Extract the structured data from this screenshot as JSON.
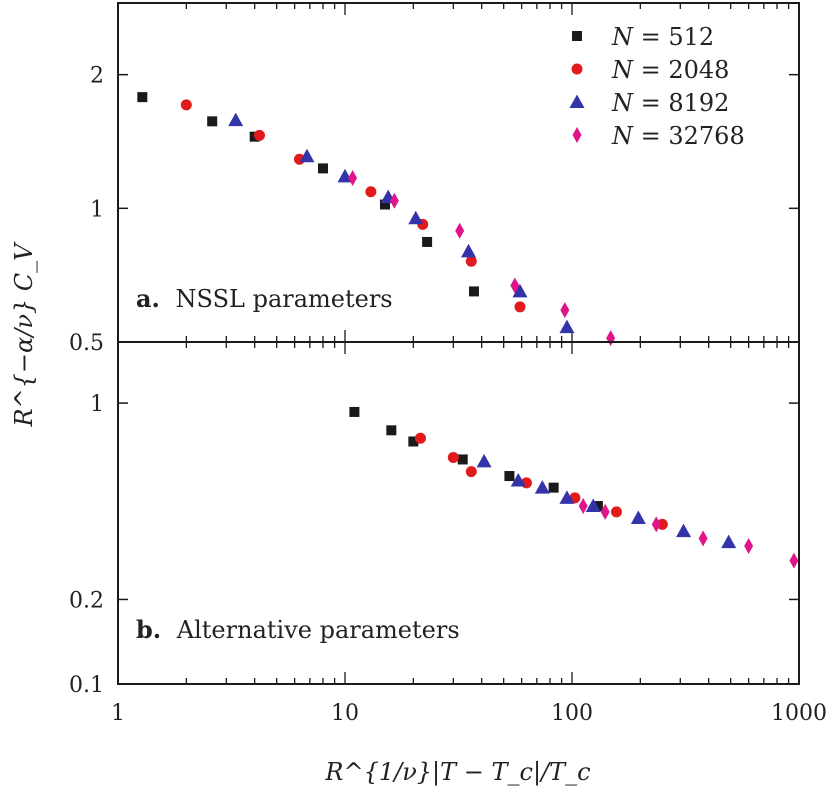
{
  "chart_data": [
    {
      "type": "scatter",
      "panel_label_bold": "a.",
      "panel_label_text": "NSSL parameters",
      "xscale": "log",
      "yscale": "log",
      "xlim": [
        1,
        1000
      ],
      "ylim": [
        0.5,
        2.9
      ],
      "yticks": [
        0.5,
        1,
        2
      ],
      "ytick_labels": [
        "0.5",
        "1",
        "2"
      ],
      "legend_position": "top-right",
      "series": [
        {
          "name": "N = 512",
          "marker": "square",
          "color": "#1a1a1a",
          "points": [
            [
              1.28,
              1.78
            ],
            [
              2.6,
              1.57
            ],
            [
              4.0,
              1.45
            ],
            [
              8.0,
              1.23
            ],
            [
              15.0,
              1.02
            ],
            [
              23.0,
              0.84
            ],
            [
              37.0,
              0.65
            ]
          ]
        },
        {
          "name": "N = 2048",
          "marker": "circle",
          "color": "#e31a1c",
          "points": [
            [
              2.0,
              1.71
            ],
            [
              4.2,
              1.46
            ],
            [
              6.3,
              1.29
            ],
            [
              13.0,
              1.09
            ],
            [
              22.0,
              0.92
            ],
            [
              36.0,
              0.76
            ],
            [
              59.0,
              0.6
            ]
          ]
        },
        {
          "name": "N = 8192",
          "marker": "triangle",
          "color": "#3333aa",
          "points": [
            [
              3.3,
              1.58
            ],
            [
              6.8,
              1.31
            ],
            [
              10.0,
              1.18
            ],
            [
              15.5,
              1.06
            ],
            [
              20.5,
              0.95
            ],
            [
              35.0,
              0.8
            ],
            [
              59.0,
              0.65
            ],
            [
              95.0,
              0.54
            ]
          ]
        },
        {
          "name": "N = 32768",
          "marker": "diamond",
          "color": "#e0158a",
          "points": [
            [
              10.8,
              1.17
            ],
            [
              16.5,
              1.04
            ],
            [
              32.0,
              0.89
            ],
            [
              56.0,
              0.67
            ],
            [
              93.0,
              0.59
            ],
            [
              148.0,
              0.51
            ]
          ]
        }
      ]
    },
    {
      "type": "scatter",
      "panel_label_bold": "b.",
      "panel_label_text": "Alternative parameters",
      "xscale": "log",
      "yscale": "log",
      "xlim": [
        1,
        1000
      ],
      "ylim": [
        0.1,
        1.65
      ],
      "yticks": [
        0.1,
        0.2,
        1
      ],
      "ytick_labels": [
        "0.1",
        "0.2",
        "1"
      ],
      "xticks": [
        1,
        10,
        100,
        1000
      ],
      "xtick_labels": [
        "1",
        "10",
        "100",
        "1000"
      ],
      "series": [
        {
          "name": "N = 512",
          "marker": "square",
          "color": "#1a1a1a",
          "points": [
            [
              11.0,
              0.93
            ],
            [
              16.0,
              0.8
            ],
            [
              20.0,
              0.73
            ],
            [
              33.0,
              0.63
            ],
            [
              53.0,
              0.55
            ],
            [
              83.0,
              0.5
            ],
            [
              130.0,
              0.43
            ]
          ]
        },
        {
          "name": "N = 2048",
          "marker": "circle",
          "color": "#e31a1c",
          "points": [
            [
              21.5,
              0.75
            ],
            [
              30.0,
              0.64
            ],
            [
              36.0,
              0.57
            ],
            [
              63.0,
              0.52
            ],
            [
              103.0,
              0.46
            ],
            [
              157.0,
              0.41
            ],
            [
              250.0,
              0.37
            ]
          ]
        },
        {
          "name": "N = 8192",
          "marker": "triangle",
          "color": "#3333aa",
          "points": [
            [
              41.0,
              0.62
            ],
            [
              58.0,
              0.53
            ],
            [
              74.0,
              0.5
            ],
            [
              95.0,
              0.46
            ],
            [
              124.0,
              0.43
            ],
            [
              196.0,
              0.39
            ],
            [
              310.0,
              0.35
            ],
            [
              490.0,
              0.32
            ]
          ]
        },
        {
          "name": "N = 32768",
          "marker": "diamond",
          "color": "#e0158a",
          "points": [
            [
              112.0,
              0.43
            ],
            [
              140.0,
              0.41
            ],
            [
              235.0,
              0.37
            ],
            [
              378.0,
              0.33
            ],
            [
              600.0,
              0.31
            ],
            [
              950.0,
              0.275
            ]
          ]
        }
      ]
    }
  ],
  "axes": {
    "ylabel": "R^{−α/ν} C_V",
    "xlabel": "R^{1/ν}|T − T_c|/T_c"
  },
  "legend": {
    "entries": [
      {
        "symbol": "N",
        "value": "512",
        "marker": "square",
        "color": "#1a1a1a"
      },
      {
        "symbol": "N",
        "value": "2048",
        "marker": "circle",
        "color": "#e31a1c"
      },
      {
        "symbol": "N",
        "value": "8192",
        "marker": "triangle",
        "color": "#3333aa"
      },
      {
        "symbol": "N",
        "value": "32768",
        "marker": "diamond",
        "color": "#e0158a"
      }
    ]
  },
  "colors": {
    "axes": "#1a1a1a",
    "background": "#ffffff"
  }
}
